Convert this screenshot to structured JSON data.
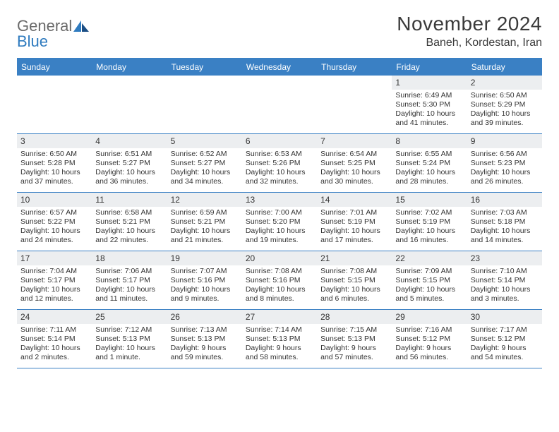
{
  "brand": {
    "part1": "General",
    "part2": "Blue"
  },
  "title": "November 2024",
  "location": "Baneh, Kordestan, Iran",
  "colors": {
    "header_bg": "#3a80c4",
    "header_text": "#ffffff",
    "daynum_bg": "#eceef0",
    "border": "#3a80c4",
    "text": "#333333",
    "brand_gray": "#6a6a6a",
    "brand_blue": "#2f7bbf"
  },
  "dayNames": [
    "Sunday",
    "Monday",
    "Tuesday",
    "Wednesday",
    "Thursday",
    "Friday",
    "Saturday"
  ],
  "weeks": [
    [
      null,
      null,
      null,
      null,
      null,
      {
        "n": "1",
        "sr": "6:49 AM",
        "ss": "5:30 PM",
        "dl": "10 hours and 41 minutes."
      },
      {
        "n": "2",
        "sr": "6:50 AM",
        "ss": "5:29 PM",
        "dl": "10 hours and 39 minutes."
      }
    ],
    [
      {
        "n": "3",
        "sr": "6:50 AM",
        "ss": "5:28 PM",
        "dl": "10 hours and 37 minutes."
      },
      {
        "n": "4",
        "sr": "6:51 AM",
        "ss": "5:27 PM",
        "dl": "10 hours and 36 minutes."
      },
      {
        "n": "5",
        "sr": "6:52 AM",
        "ss": "5:27 PM",
        "dl": "10 hours and 34 minutes."
      },
      {
        "n": "6",
        "sr": "6:53 AM",
        "ss": "5:26 PM",
        "dl": "10 hours and 32 minutes."
      },
      {
        "n": "7",
        "sr": "6:54 AM",
        "ss": "5:25 PM",
        "dl": "10 hours and 30 minutes."
      },
      {
        "n": "8",
        "sr": "6:55 AM",
        "ss": "5:24 PM",
        "dl": "10 hours and 28 minutes."
      },
      {
        "n": "9",
        "sr": "6:56 AM",
        "ss": "5:23 PM",
        "dl": "10 hours and 26 minutes."
      }
    ],
    [
      {
        "n": "10",
        "sr": "6:57 AM",
        "ss": "5:22 PM",
        "dl": "10 hours and 24 minutes."
      },
      {
        "n": "11",
        "sr": "6:58 AM",
        "ss": "5:21 PM",
        "dl": "10 hours and 22 minutes."
      },
      {
        "n": "12",
        "sr": "6:59 AM",
        "ss": "5:21 PM",
        "dl": "10 hours and 21 minutes."
      },
      {
        "n": "13",
        "sr": "7:00 AM",
        "ss": "5:20 PM",
        "dl": "10 hours and 19 minutes."
      },
      {
        "n": "14",
        "sr": "7:01 AM",
        "ss": "5:19 PM",
        "dl": "10 hours and 17 minutes."
      },
      {
        "n": "15",
        "sr": "7:02 AM",
        "ss": "5:19 PM",
        "dl": "10 hours and 16 minutes."
      },
      {
        "n": "16",
        "sr": "7:03 AM",
        "ss": "5:18 PM",
        "dl": "10 hours and 14 minutes."
      }
    ],
    [
      {
        "n": "17",
        "sr": "7:04 AM",
        "ss": "5:17 PM",
        "dl": "10 hours and 12 minutes."
      },
      {
        "n": "18",
        "sr": "7:06 AM",
        "ss": "5:17 PM",
        "dl": "10 hours and 11 minutes."
      },
      {
        "n": "19",
        "sr": "7:07 AM",
        "ss": "5:16 PM",
        "dl": "10 hours and 9 minutes."
      },
      {
        "n": "20",
        "sr": "7:08 AM",
        "ss": "5:16 PM",
        "dl": "10 hours and 8 minutes."
      },
      {
        "n": "21",
        "sr": "7:08 AM",
        "ss": "5:15 PM",
        "dl": "10 hours and 6 minutes."
      },
      {
        "n": "22",
        "sr": "7:09 AM",
        "ss": "5:15 PM",
        "dl": "10 hours and 5 minutes."
      },
      {
        "n": "23",
        "sr": "7:10 AM",
        "ss": "5:14 PM",
        "dl": "10 hours and 3 minutes."
      }
    ],
    [
      {
        "n": "24",
        "sr": "7:11 AM",
        "ss": "5:14 PM",
        "dl": "10 hours and 2 minutes."
      },
      {
        "n": "25",
        "sr": "7:12 AM",
        "ss": "5:13 PM",
        "dl": "10 hours and 1 minute."
      },
      {
        "n": "26",
        "sr": "7:13 AM",
        "ss": "5:13 PM",
        "dl": "9 hours and 59 minutes."
      },
      {
        "n": "27",
        "sr": "7:14 AM",
        "ss": "5:13 PM",
        "dl": "9 hours and 58 minutes."
      },
      {
        "n": "28",
        "sr": "7:15 AM",
        "ss": "5:13 PM",
        "dl": "9 hours and 57 minutes."
      },
      {
        "n": "29",
        "sr": "7:16 AM",
        "ss": "5:12 PM",
        "dl": "9 hours and 56 minutes."
      },
      {
        "n": "30",
        "sr": "7:17 AM",
        "ss": "5:12 PM",
        "dl": "9 hours and 54 minutes."
      }
    ]
  ],
  "labels": {
    "sunrise": "Sunrise:",
    "sunset": "Sunset:",
    "daylight": "Daylight:"
  }
}
